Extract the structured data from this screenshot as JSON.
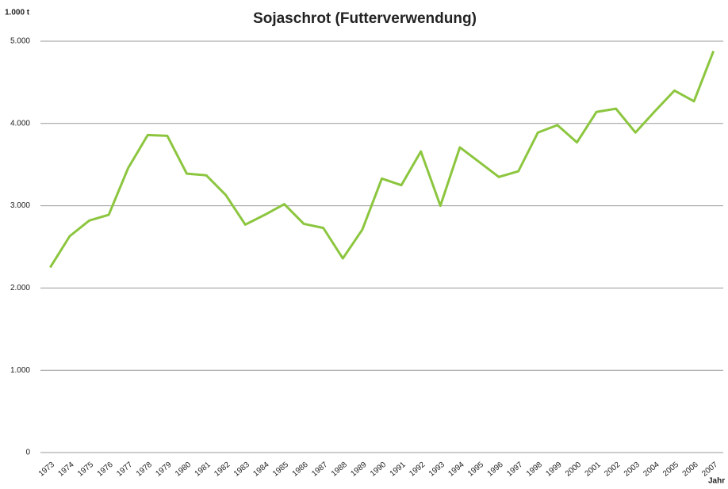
{
  "chart_data": {
    "type": "line",
    "title": "Sojaschrot (Futterverwendung)",
    "y_label": "1.000 t",
    "x_label": "Jahr",
    "categories": [
      "1973",
      "1974",
      "1975",
      "1976",
      "1977",
      "1978",
      "1979",
      "1980",
      "1981",
      "1982",
      "1983",
      "1984",
      "1985",
      "1986",
      "1987",
      "1988",
      "1989",
      "1990",
      "1991",
      "1992",
      "1993",
      "1994",
      "1995",
      "1996",
      "1997",
      "1998",
      "1999",
      "2000",
      "2001",
      "2002",
      "2003",
      "2004",
      "2005",
      "2006",
      "2007"
    ],
    "series": [
      {
        "name": "Sojaschrot",
        "color": "#8cc63f",
        "values": [
          2250,
          2630,
          2820,
          2890,
          3460,
          3860,
          3850,
          3390,
          3370,
          3130,
          2770,
          2890,
          3020,
          2780,
          2730,
          2360,
          2710,
          3330,
          3250,
          3660,
          3000,
          3710,
          3530,
          3350,
          3420,
          3890,
          3980,
          3770,
          4140,
          4180,
          3890,
          4150,
          4400,
          4270,
          4880
        ]
      }
    ],
    "ylim": [
      0,
      5000
    ],
    "yticks": [
      0,
      {
        "value": 1000,
        "label": "1.000"
      },
      {
        "value": 2000,
        "label": "2.000"
      },
      {
        "value": 3000,
        "label": "3.000"
      },
      {
        "value": 4000,
        "label": "4.000"
      },
      {
        "value": 5000,
        "label": "5.000"
      }
    ],
    "grid": true
  }
}
